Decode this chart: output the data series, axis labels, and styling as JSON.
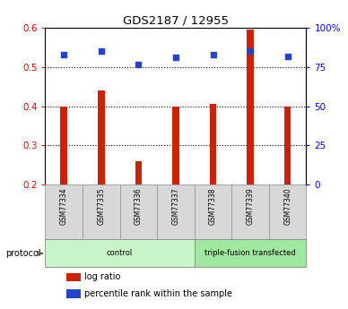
{
  "title": "GDS2187 / 12955",
  "samples": [
    "GSM77334",
    "GSM77335",
    "GSM77336",
    "GSM77337",
    "GSM77338",
    "GSM77339",
    "GSM77340"
  ],
  "log_ratio": [
    0.4,
    0.44,
    0.26,
    0.4,
    0.405,
    0.595,
    0.4
  ],
  "percentile_rank": [
    83,
    85,
    76.5,
    81,
    83,
    85,
    82
  ],
  "bar_color": "#cc2200",
  "dot_color": "#2244cc",
  "ylim_left": [
    0.2,
    0.6
  ],
  "ylim_right": [
    0,
    100
  ],
  "yticks_left": [
    0.2,
    0.3,
    0.4,
    0.5,
    0.6
  ],
  "yticks_right": [
    0,
    25,
    50,
    75,
    100
  ],
  "groups": [
    {
      "label": "control",
      "start": 0,
      "end": 3,
      "color": "#c8f5c8"
    },
    {
      "label": "triple-fusion transfected",
      "start": 4,
      "end": 6,
      "color": "#a0e8a0"
    }
  ],
  "protocol_label": "protocol",
  "legend_items": [
    {
      "color": "#cc2200",
      "label": "log ratio"
    },
    {
      "color": "#2244cc",
      "label": "percentile rank within the sample"
    }
  ],
  "bar_width": 0.18,
  "sample_box_color": "#d8d8d8",
  "sample_box_edge": "#999999"
}
